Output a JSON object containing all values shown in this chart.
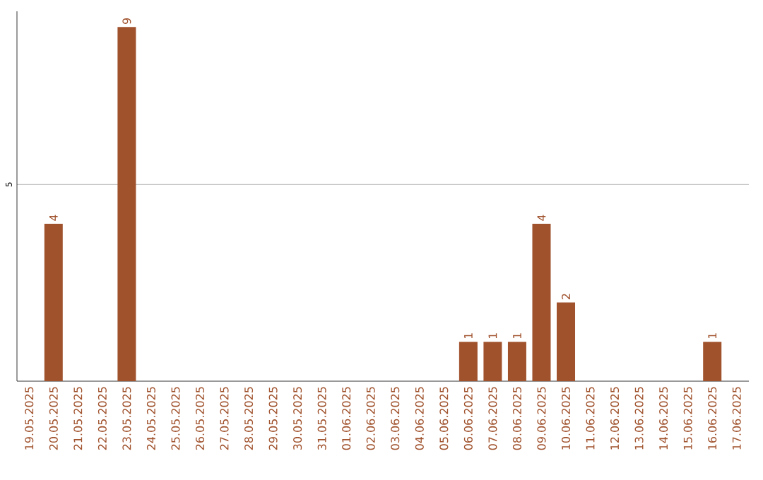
{
  "chart_data": {
    "type": "bar",
    "categories": [
      "19.05.2025",
      "20.05.2025",
      "21.05.2025",
      "22.05.2025",
      "23.05.2025",
      "24.05.2025",
      "25.05.2025",
      "26.05.2025",
      "27.05.2025",
      "28.05.2025",
      "29.05.2025",
      "30.05.2025",
      "31.05.2025",
      "01.06.2025",
      "02.06.2025",
      "03.06.2025",
      "04.06.2025",
      "05.06.2025",
      "06.06.2025",
      "07.06.2025",
      "08.06.2025",
      "09.06.2025",
      "10.06.2025",
      "11.06.2025",
      "12.06.2025",
      "13.06.2025",
      "14.06.2025",
      "15.06.2025",
      "16.06.2025",
      "17.06.2025"
    ],
    "values": [
      0,
      4,
      0,
      0,
      9,
      0,
      0,
      0,
      0,
      0,
      0,
      0,
      0,
      0,
      0,
      0,
      0,
      0,
      1,
      1,
      1,
      4,
      2,
      0,
      0,
      0,
      0,
      0,
      1,
      0
    ],
    "value_labels": [
      null,
      "4",
      null,
      null,
      "9",
      null,
      null,
      null,
      null,
      null,
      null,
      null,
      null,
      null,
      null,
      null,
      null,
      null,
      "1",
      "1",
      "1",
      "4",
      "2",
      null,
      null,
      null,
      null,
      null,
      "1",
      null
    ],
    "color": "#a0522d",
    "ylim": [
      0,
      9.4
    ],
    "yticks": [
      5
    ],
    "grid": "y"
  }
}
